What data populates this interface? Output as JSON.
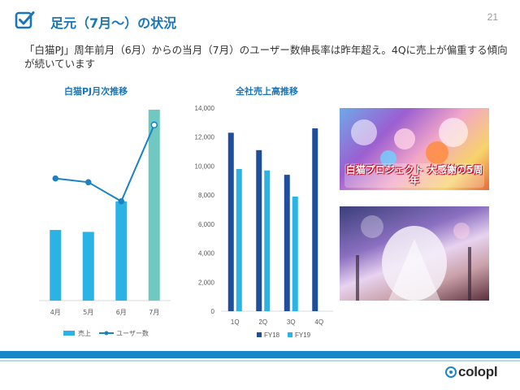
{
  "header": {
    "title": "足元（7月～）の状況",
    "page_number": "21"
  },
  "lead_text": "「白猫PJ」周年前月（6月）からの当月（7月）のユーザー数伸長率は昨年超え。4Qに売上が偏重する傾向が続いています",
  "colors": {
    "accent_blue": "#1a76b8",
    "sales_bar": "#2bb3e6",
    "sales_bar_highlight": "#6fc9c0",
    "user_line": "#1b82c2",
    "fy18": "#1f4e9c",
    "fy19": "#2bb3e6"
  },
  "chart_data": [
    {
      "type": "bar",
      "title": "白猫PJ月次推移",
      "categories": [
        "4月",
        "5月",
        "6月",
        "7月"
      ],
      "series": [
        {
          "name": "売上",
          "kind": "bar",
          "values": [
            0.37,
            0.36,
            0.52,
            1.0
          ]
        },
        {
          "name": "ユーザー数",
          "kind": "line",
          "values": [
            0.64,
            0.62,
            0.52,
            0.92
          ]
        }
      ],
      "y_axis_visible": false,
      "grid": false,
      "legend_position": "bottom"
    },
    {
      "type": "bar",
      "title": "全社売上高推移",
      "categories": [
        "1Q",
        "2Q",
        "3Q",
        "4Q"
      ],
      "series": [
        {
          "name": "FY18",
          "values": [
            12300,
            11100,
            9400,
            12600
          ]
        },
        {
          "name": "FY19",
          "values": [
            9800,
            9700,
            7900,
            null
          ]
        }
      ],
      "ylim": [
        0,
        14000
      ],
      "yticks": [
        "0",
        "2,000",
        "4,000",
        "6,000",
        "8,000",
        "10,000",
        "12,000",
        "14,000"
      ],
      "grid": false,
      "legend_position": "bottom"
    }
  ],
  "footer": {
    "logo_text": "colopl"
  },
  "images": [
    {
      "name": "shironeko-5th-anniversary-banner",
      "caption": "白猫プロジェクト 大感謝の5周年"
    },
    {
      "name": "shironeko-key-art"
    }
  ]
}
